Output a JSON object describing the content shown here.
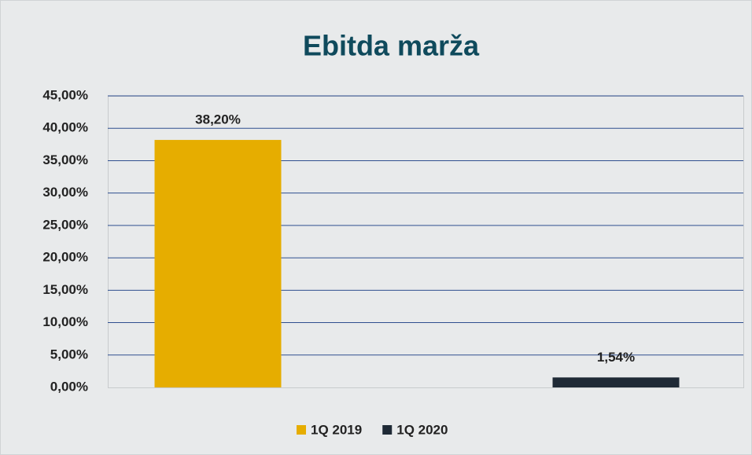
{
  "chart_data": {
    "type": "bar",
    "title": "Ebitda marža",
    "series": [
      {
        "name": "1Q 2019",
        "color": "#e6ad00",
        "values": [
          38.2
        ],
        "value_labels": [
          "38,20%"
        ]
      },
      {
        "name": "1Q 2020",
        "color": "#1f2a36",
        "values": [
          1.54
        ],
        "value_labels": [
          "1,54%"
        ]
      }
    ],
    "ylim": [
      0,
      45
    ],
    "yticks": [
      {
        "value": 0,
        "label": "0,00%"
      },
      {
        "value": 5,
        "label": "5,00%"
      },
      {
        "value": 10,
        "label": "10,00%"
      },
      {
        "value": 15,
        "label": "15,00%"
      },
      {
        "value": 20,
        "label": "20,00%"
      },
      {
        "value": 25,
        "label": "25,00%"
      },
      {
        "value": 30,
        "label": "30,00%"
      },
      {
        "value": 35,
        "label": "35,00%"
      },
      {
        "value": 40,
        "label": "40,00%"
      },
      {
        "value": 45,
        "label": "45,00%"
      }
    ],
    "grid": true,
    "legend": "bottom"
  }
}
